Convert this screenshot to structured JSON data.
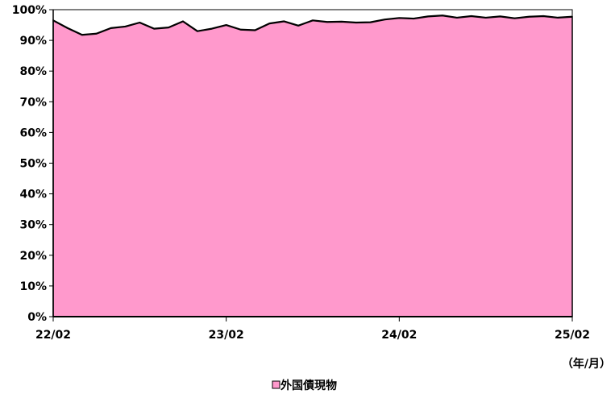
{
  "chart_data": {
    "type": "area",
    "x_unit_label": "（年/月）",
    "x_tick_labels": [
      "22/02",
      "23/02",
      "24/02",
      "25/02"
    ],
    "y_tick_labels": [
      "0%",
      "10%",
      "20%",
      "30%",
      "40%",
      "50%",
      "60%",
      "70%",
      "80%",
      "90%",
      "100%"
    ],
    "ylim": [
      0,
      100
    ],
    "grid": false,
    "legend_position": "bottom-center",
    "x": [
      "22/02",
      "22/03",
      "22/04",
      "22/05",
      "22/06",
      "22/07",
      "22/08",
      "22/09",
      "22/10",
      "22/11",
      "22/12",
      "23/01",
      "23/02",
      "23/03",
      "23/04",
      "23/05",
      "23/06",
      "23/07",
      "23/08",
      "23/09",
      "23/10",
      "23/11",
      "23/12",
      "24/01",
      "24/02",
      "24/03",
      "24/04",
      "24/05",
      "24/06",
      "24/07",
      "24/08",
      "24/09",
      "24/10",
      "24/11",
      "24/12",
      "25/01",
      "25/02"
    ],
    "series": [
      {
        "name": "外国債現物",
        "color": "#ff99cc",
        "values": [
          96.5,
          94.0,
          91.8,
          92.2,
          94.0,
          94.5,
          95.8,
          93.8,
          94.2,
          96.2,
          93.0,
          93.8,
          95.0,
          93.5,
          93.3,
          95.5,
          96.2,
          94.8,
          96.5,
          96.0,
          96.1,
          95.8,
          95.9,
          96.8,
          97.3,
          97.1,
          97.8,
          98.1,
          97.4,
          97.9,
          97.4,
          97.8,
          97.2,
          97.7,
          97.9,
          97.4,
          97.7
        ]
      }
    ]
  }
}
